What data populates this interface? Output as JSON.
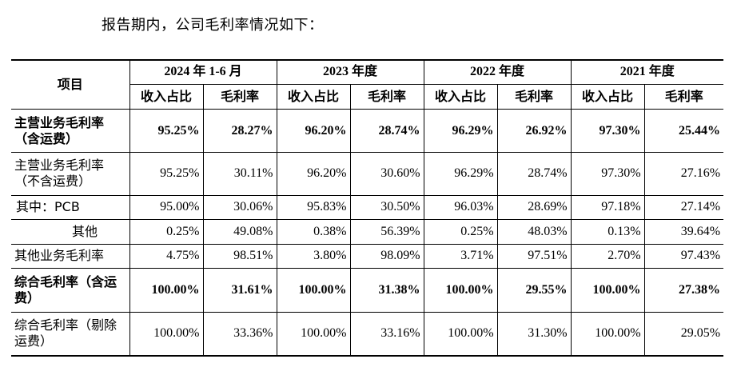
{
  "intro": "报告期内，公司毛利率情况如下：",
  "header": {
    "item": "项目",
    "periods": [
      "2024 年 1-6 月",
      "2023 年度",
      "2022 年度",
      "2021 年度"
    ],
    "share": "收入占比",
    "margin": "毛利率"
  },
  "rows": [
    {
      "label": "主营业务毛利率（含运费）",
      "values": [
        "95.25%",
        "28.27%",
        "96.20%",
        "28.74%",
        "96.29%",
        "26.92%",
        "97.30%",
        "25.44%"
      ]
    },
    {
      "label": "主营业务毛利率（不含运费）",
      "values": [
        "95.25%",
        "30.11%",
        "96.20%",
        "30.60%",
        "96.29%",
        "28.74%",
        "97.30%",
        "27.16%"
      ]
    },
    {
      "label": "其中：PCB",
      "values": [
        "95.00%",
        "30.06%",
        "95.83%",
        "30.50%",
        "96.03%",
        "28.69%",
        "97.18%",
        "27.14%"
      ]
    },
    {
      "label": "其他",
      "values": [
        "0.25%",
        "49.08%",
        "0.38%",
        "56.39%",
        "0.25%",
        "48.03%",
        "0.13%",
        "39.64%"
      ]
    },
    {
      "label": "其他业务毛利率",
      "values": [
        "4.75%",
        "98.51%",
        "3.80%",
        "98.09%",
        "3.71%",
        "97.51%",
        "2.70%",
        "97.43%"
      ]
    },
    {
      "label": "综合毛利率（含运费）",
      "values": [
        "100.00%",
        "31.61%",
        "100.00%",
        "31.38%",
        "100.00%",
        "29.55%",
        "100.00%",
        "27.38%"
      ]
    },
    {
      "label": "综合毛利率（剔除运费）",
      "values": [
        "100.00%",
        "33.36%",
        "100.00%",
        "33.16%",
        "100.00%",
        "31.30%",
        "100.00%",
        "29.05%"
      ]
    }
  ]
}
